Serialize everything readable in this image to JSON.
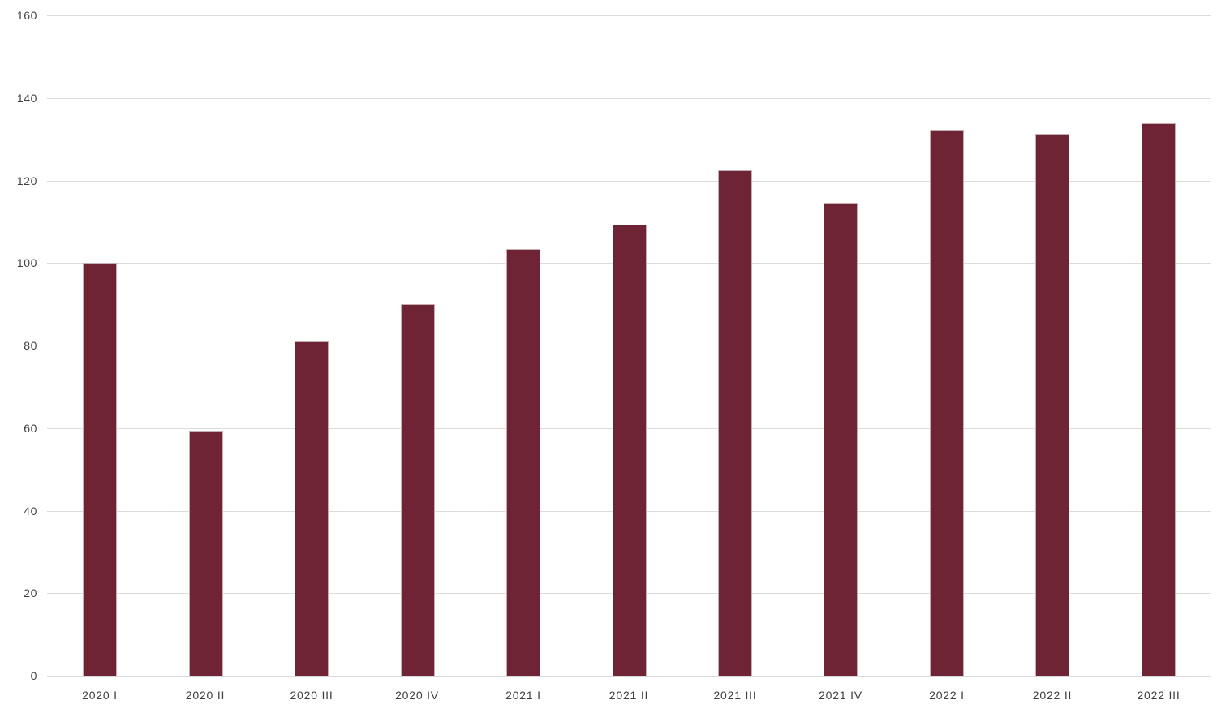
{
  "chart_data": {
    "type": "bar",
    "title": "",
    "xlabel": "",
    "ylabel": "",
    "categories": [
      "2020 I",
      "2020 II",
      "2020 III",
      "2020 IV",
      "2021 I",
      "2021 II",
      "2021 III",
      "2021 IV",
      "2022 I",
      "2022 II",
      "2022 III"
    ],
    "values": [
      100,
      59.3,
      81,
      90,
      103.4,
      109.2,
      122.4,
      114.5,
      132.3,
      131.4,
      133.8
    ],
    "ylim": [
      0,
      160
    ],
    "ytick_step": 20,
    "ytick_labels": [
      "0",
      "20",
      "40",
      "60",
      "80",
      "100",
      "120",
      "140",
      "160"
    ],
    "grid": true,
    "legend_position": "none",
    "colors": {
      "bar_fill": "#6E2434",
      "bar_border": "#C7AEB3",
      "gridline": "#DCDCDC",
      "axis_line": "#D9D9D9",
      "tick_label_text": "#404040",
      "background": "#FFFFFF"
    }
  }
}
